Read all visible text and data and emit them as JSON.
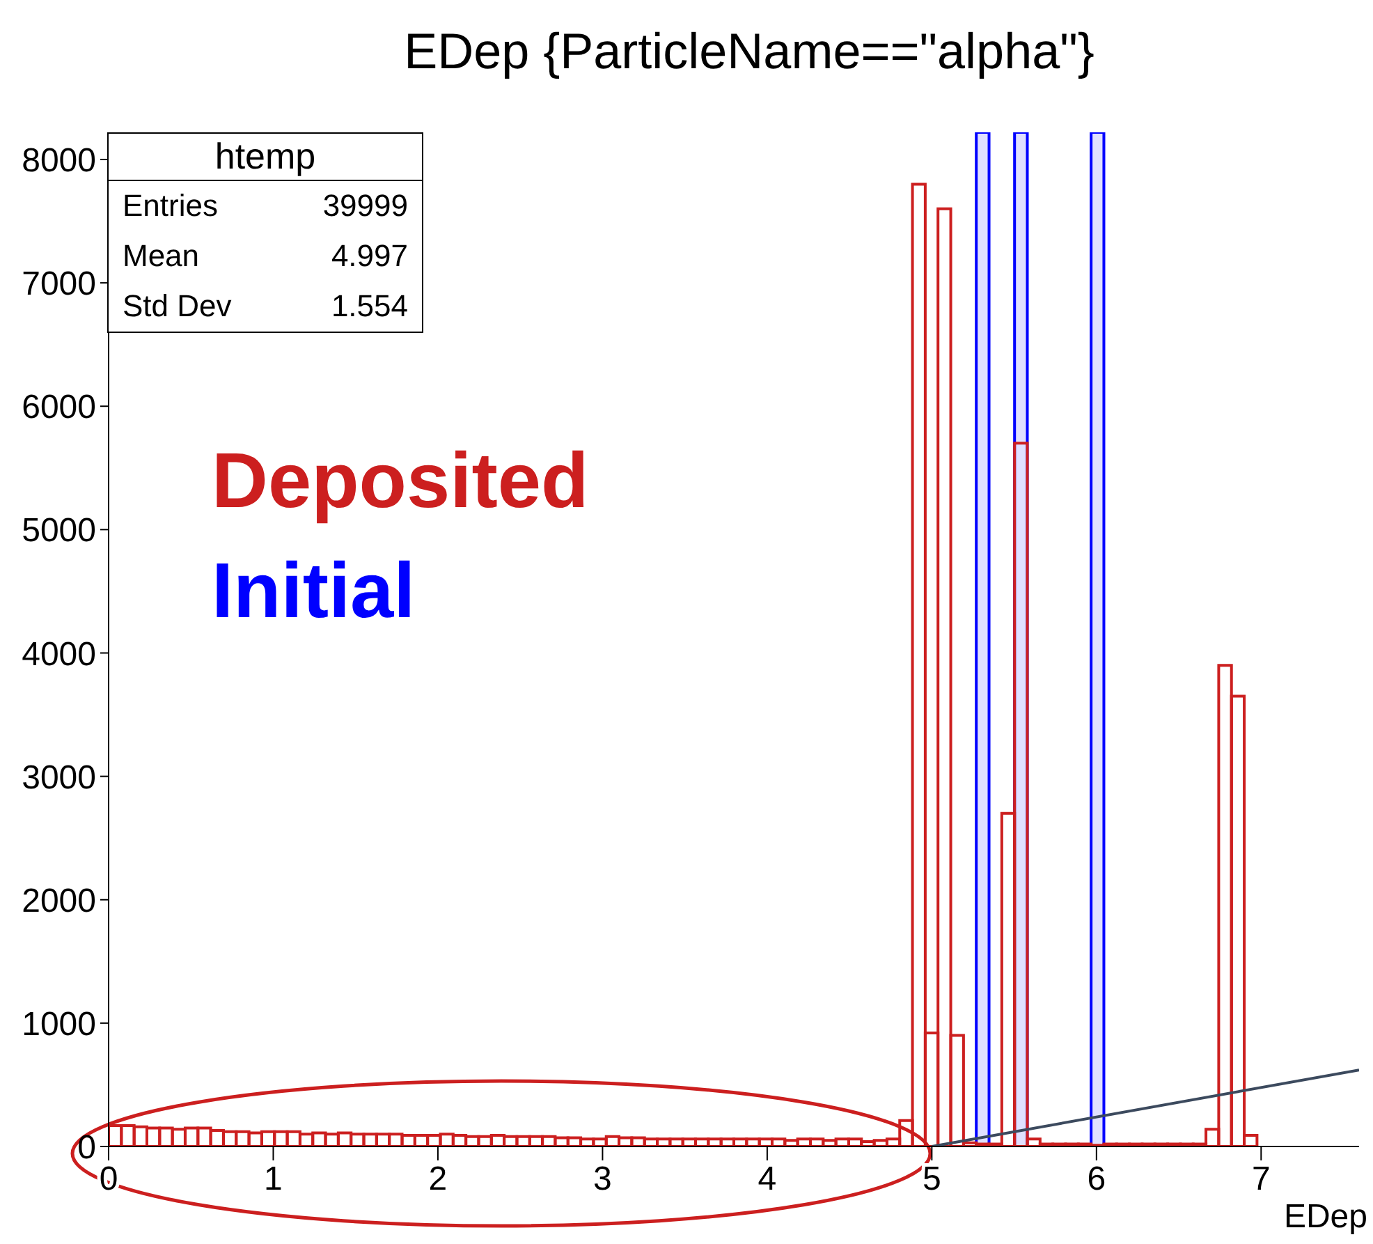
{
  "chart_data": {
    "type": "histogram",
    "title": "EDep {ParticleName==\"alpha\"}",
    "xlabel": "EDep",
    "bins": [
      0,
      0.0775,
      0.155,
      0.2325,
      0.31,
      0.3875,
      0.465,
      0.5425,
      0.62,
      0.6975,
      0.775,
      0.8525,
      0.93,
      1.0075,
      1.085,
      1.1625,
      1.24,
      1.3175,
      1.395,
      1.4725,
      1.55,
      1.6275,
      1.705,
      1.7825,
      1.86,
      1.9375,
      2.015,
      2.0925,
      2.17,
      2.2475,
      2.325,
      2.4025,
      2.48,
      2.5575,
      2.635,
      2.7125,
      2.79,
      2.8675,
      2.945,
      3.0225,
      3.1,
      3.1775,
      3.255,
      3.3325,
      3.41,
      3.4875,
      3.565,
      3.6425,
      3.72,
      3.7975,
      3.875,
      3.9525,
      4.03,
      4.1075,
      4.185,
      4.2625,
      4.34,
      4.4175,
      4.495,
      4.5725,
      4.65,
      4.7275,
      4.805,
      4.8825,
      4.96,
      5.0375,
      5.115,
      5.1925,
      5.27,
      5.3475,
      5.425,
      5.5025,
      5.58,
      5.6575,
      5.735,
      5.8125,
      5.89,
      5.9675,
      6.045,
      6.1225,
      6.2,
      6.2775,
      6.355,
      6.4325,
      6.51,
      6.5875,
      6.665,
      6.7425,
      6.82,
      6.8975,
      6.975,
      7.0525,
      7.13,
      7.2075,
      7.285,
      7.3625,
      7.44,
      7.5175,
      7.595
    ],
    "series": [
      {
        "color": "#cc1f1f",
        "values": [
          170,
          170,
          160,
          150,
          150,
          140,
          150,
          150,
          130,
          120,
          120,
          110,
          120,
          120,
          120,
          100,
          110,
          100,
          110,
          100,
          100,
          100,
          100,
          90,
          90,
          90,
          100,
          90,
          80,
          80,
          90,
          80,
          80,
          80,
          80,
          70,
          70,
          60,
          60,
          80,
          70,
          70,
          60,
          60,
          60,
          60,
          60,
          60,
          60,
          60,
          60,
          60,
          60,
          50,
          60,
          60,
          50,
          60,
          60,
          40,
          50,
          60,
          210,
          7800,
          920,
          7600,
          900,
          30,
          20,
          20,
          2700,
          5700,
          60,
          20,
          20,
          20,
          20,
          10,
          20,
          20,
          20,
          20,
          20,
          20,
          20,
          20,
          140,
          3900,
          3650,
          90,
          0,
          0,
          0,
          0,
          0,
          0,
          0,
          0
        ]
      },
      {
        "type": "line",
        "x": [
          5,
          7.595
        ],
        "values": [
          0,
          620
        ],
        "color": "#3c4a5e"
      }
    ],
    "bands": [
      {
        "axis": "x",
        "from": 5.27,
        "to": 5.3475,
        "color": "#0000ff"
      },
      {
        "axis": "x",
        "from": 5.5025,
        "to": 5.58,
        "color": "#0000ff"
      },
      {
        "axis": "x",
        "from": 5.9675,
        "to": 6.045,
        "color": "#0000ff"
      }
    ],
    "xlim": [
      0,
      7.595
    ],
    "xticks": [
      0,
      1,
      2,
      3,
      4,
      5,
      6,
      7
    ],
    "ylim": [
      0,
      8220
    ],
    "yticks": [
      0,
      1000,
      2000,
      3000,
      4000,
      5000,
      6000,
      7000,
      8000
    ],
    "annotations": [
      "htemp",
      "Entries",
      "39999",
      "Mean",
      "4.997",
      "Std Dev",
      "1.554",
      "Deposited",
      "Initial"
    ]
  }
}
